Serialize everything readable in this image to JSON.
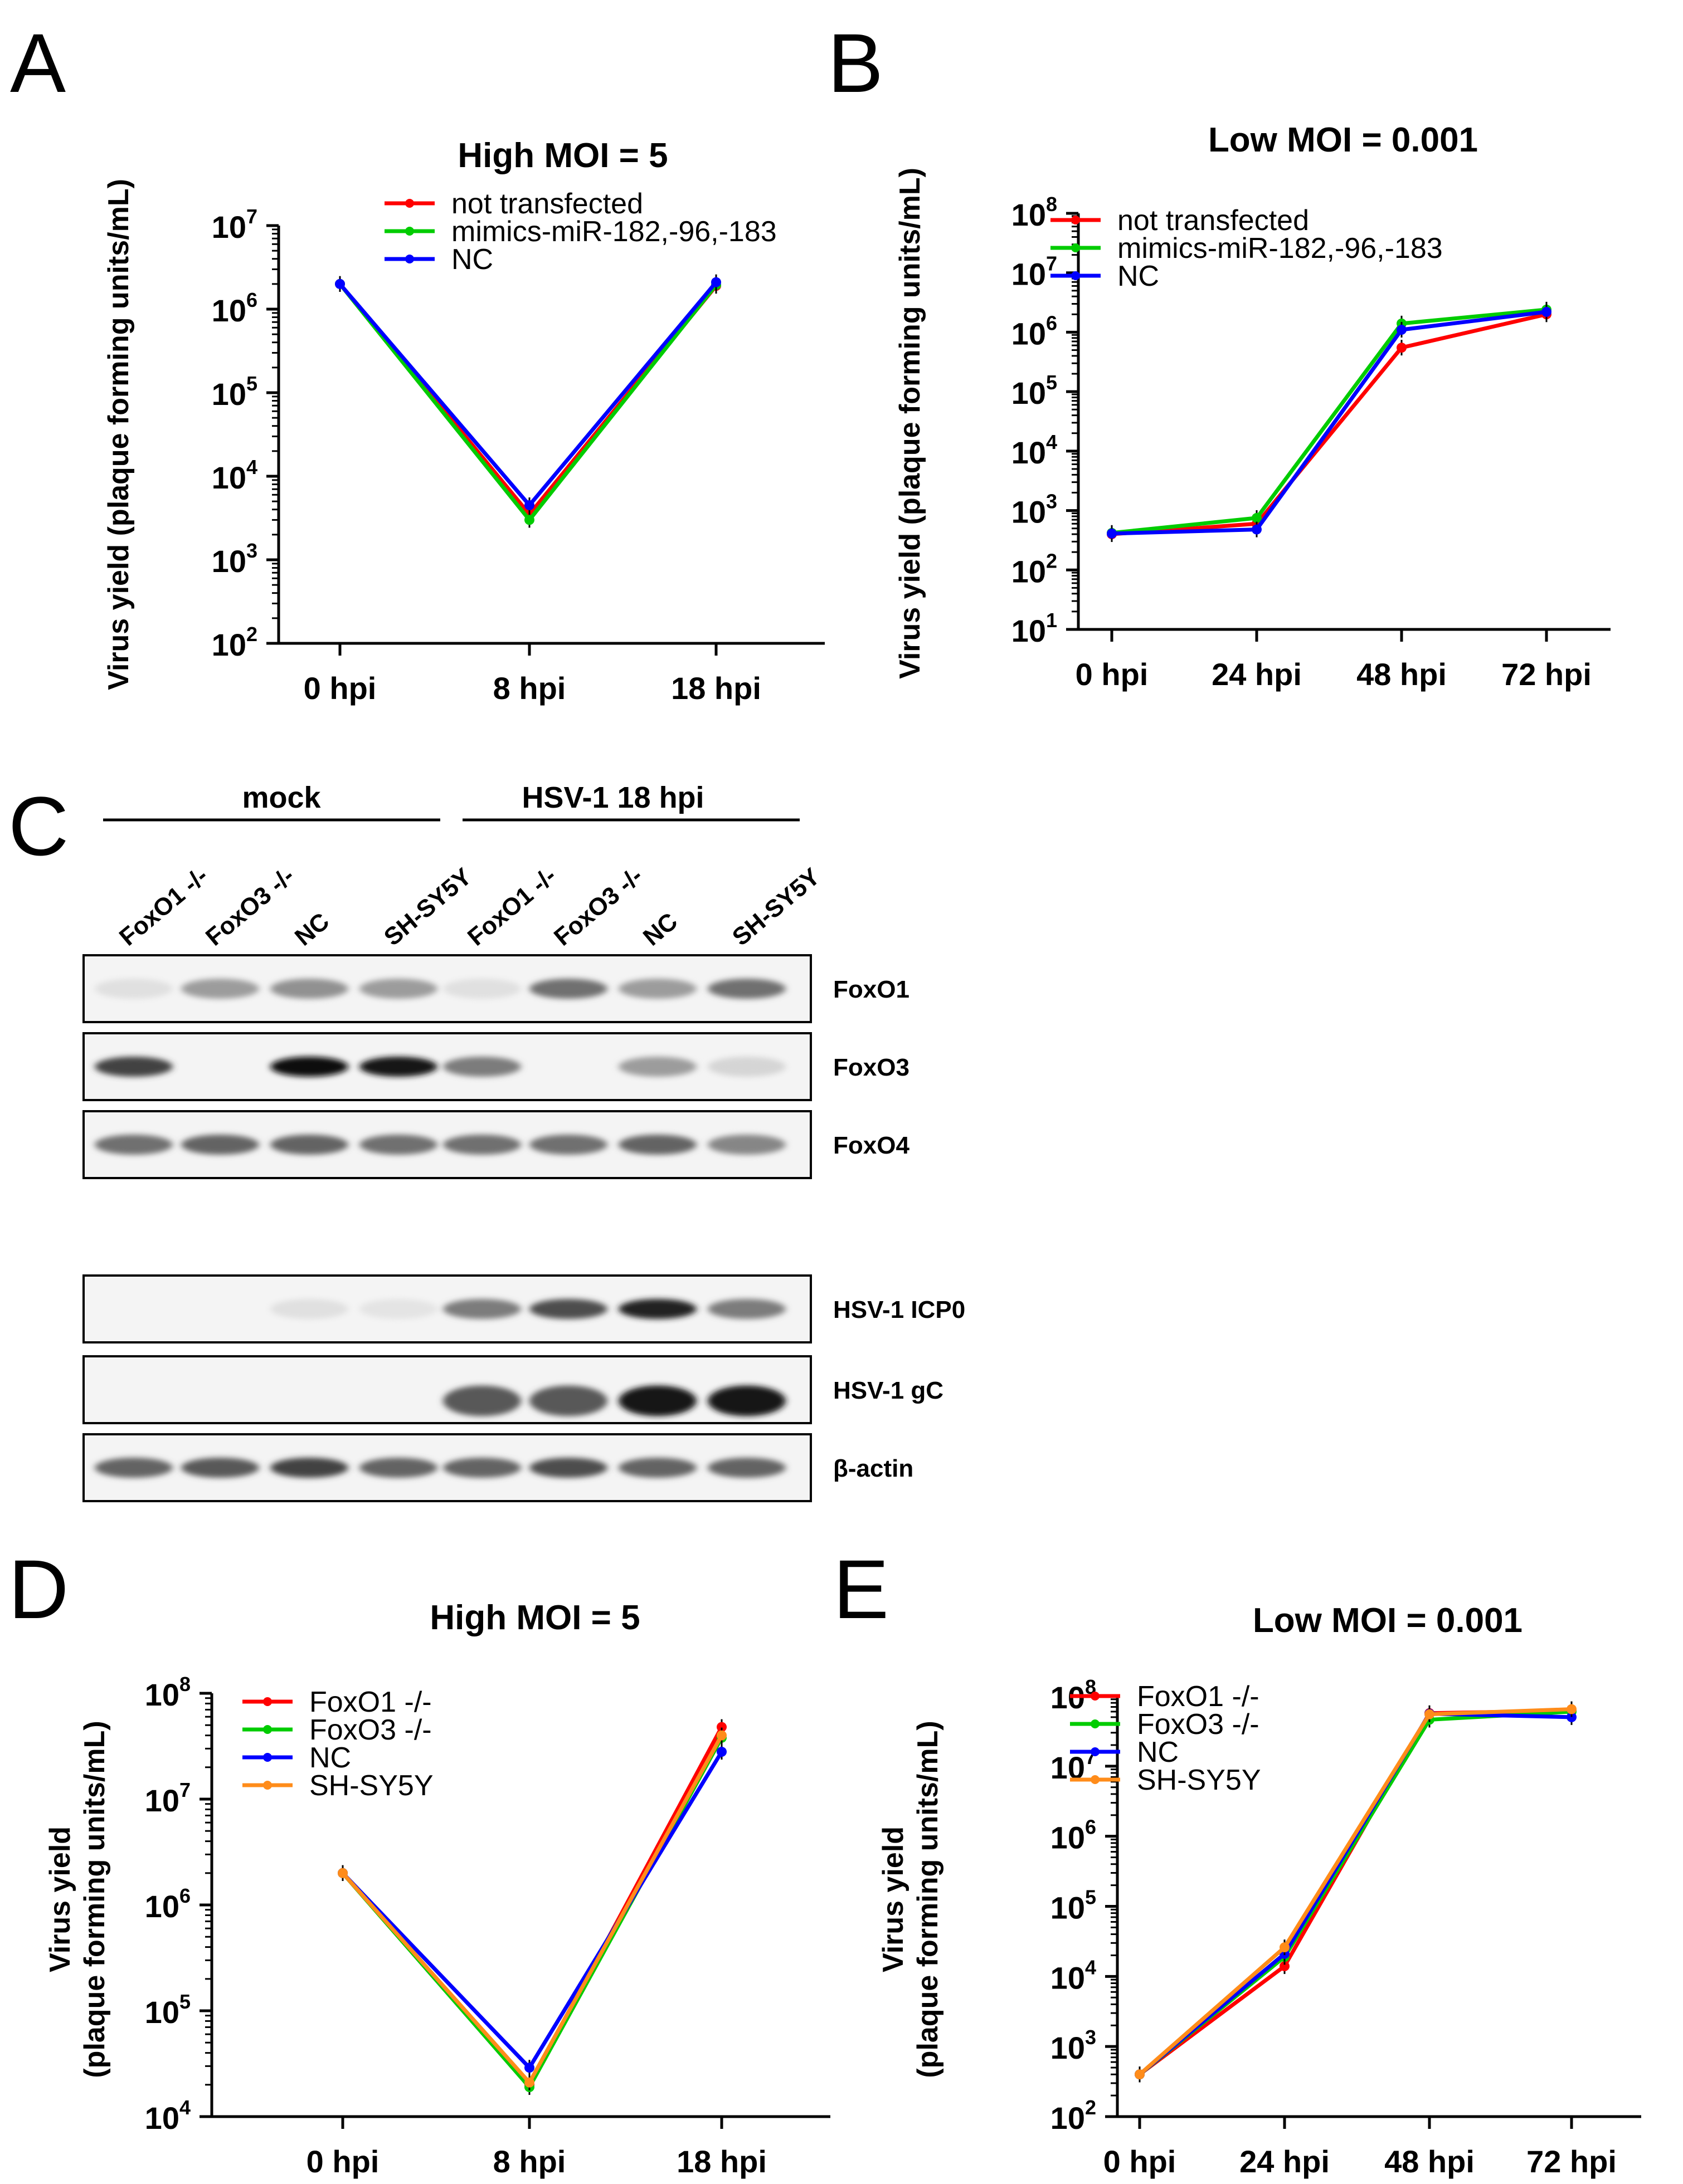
{
  "panels": {
    "A": "A",
    "B": "B",
    "C": "C",
    "D": "D",
    "E": "E"
  },
  "chart_data": [
    {
      "id": "A",
      "type": "line",
      "yscale": "log",
      "title": "High MOI = 5",
      "ylabel": "Virus yield (plaque forming units/mL)",
      "categories": [
        "0 hpi",
        "8 hpi",
        "18 hpi"
      ],
      "ylim_exp": [
        2,
        7
      ],
      "series": [
        {
          "name": "not transfected",
          "color": "#ff0000",
          "values": [
            2000000,
            3500,
            1900000
          ]
        },
        {
          "name": "mimics-miR-182,-96,-183",
          "color": "#00cc00",
          "values": [
            2000000,
            3000,
            1950000
          ]
        },
        {
          "name": "NC",
          "color": "#0000ff",
          "values": [
            2000000,
            4500,
            2100000
          ]
        }
      ]
    },
    {
      "id": "B",
      "type": "line",
      "yscale": "log",
      "title": "Low MOI = 0.001",
      "ylabel": "Virus yield (plaque forming units/mL)",
      "categories": [
        "0 hpi",
        "24 hpi",
        "48 hpi",
        "72 hpi"
      ],
      "ylim_exp": [
        1,
        8
      ],
      "series": [
        {
          "name": "not transfected",
          "color": "#ff0000",
          "values": [
            400,
            600,
            550000,
            2000000
          ]
        },
        {
          "name": "mimics-miR-182,-96,-183",
          "color": "#00cc00",
          "values": [
            420,
            750,
            1400000,
            2400000
          ]
        },
        {
          "name": "NC",
          "color": "#0000ff",
          "values": [
            410,
            480,
            1100000,
            2200000
          ]
        }
      ]
    },
    {
      "id": "D",
      "type": "line",
      "yscale": "log",
      "title": "High MOI = 5",
      "ylabel": [
        "Virus yield",
        "(plaque forming units/mL)"
      ],
      "categories": [
        "0 hpi",
        "8 hpi",
        "18 hpi"
      ],
      "ylim_exp": [
        4,
        8
      ],
      "series": [
        {
          "name": "FoxO1 -/-",
          "color": "#ff0000",
          "values": [
            2000000,
            20000,
            48000000
          ]
        },
        {
          "name": "FoxO3 -/-",
          "color": "#00cc00",
          "values": [
            2000000,
            19000,
            38000000
          ]
        },
        {
          "name": "NC",
          "color": "#0000ff",
          "values": [
            2000000,
            29000,
            28000000
          ]
        },
        {
          "name": "SH-SY5Y",
          "color": "#ff8c1a",
          "values": [
            2000000,
            21000,
            40000000
          ]
        }
      ]
    },
    {
      "id": "E",
      "type": "line",
      "yscale": "log",
      "title": "Low MOI = 0.001",
      "ylabel": [
        "Virus yield",
        "(plaque forming units/mL)"
      ],
      "categories": [
        "0 hpi",
        "24 hpi",
        "48 hpi",
        "72 hpi"
      ],
      "ylim_exp": [
        2,
        8
      ],
      "series": [
        {
          "name": "FoxO1 -/-",
          "color": "#ff0000",
          "values": [
            400,
            14000,
            57000000,
            62000000
          ]
        },
        {
          "name": "FoxO3 -/-",
          "color": "#00cc00",
          "values": [
            400,
            19000,
            46000000,
            60000000
          ]
        },
        {
          "name": "NC",
          "color": "#0000ff",
          "values": [
            400,
            21000,
            56000000,
            50000000
          ]
        },
        {
          "name": "SH-SY5Y",
          "color": "#ff8c1a",
          "values": [
            400,
            26000,
            55000000,
            65000000
          ]
        }
      ]
    }
  ],
  "blot": {
    "groups": [
      "mock",
      "HSV-1 18 hpi"
    ],
    "lanes": [
      "FoxO1 -/-",
      "FoxO3 -/-",
      "NC",
      "SH-SY5Y",
      "FoxO1 -/-",
      "FoxO3 -/-",
      "NC",
      "SH-SY5Y"
    ],
    "rows": [
      {
        "label": "FoxO1",
        "intensity": [
          0.05,
          0.35,
          0.4,
          0.35,
          0.05,
          0.55,
          0.35,
          0.55
        ]
      },
      {
        "label": "FoxO3",
        "intensity": [
          0.75,
          0.0,
          1.0,
          0.95,
          0.5,
          0.0,
          0.35,
          0.1
        ]
      },
      {
        "label": "FoxO4",
        "intensity": [
          0.55,
          0.6,
          0.6,
          0.55,
          0.55,
          0.55,
          0.6,
          0.45
        ]
      },
      {
        "label": "HSV-1 ICP0",
        "intensity": [
          0.0,
          0.0,
          0.05,
          0.03,
          0.5,
          0.7,
          0.9,
          0.5
        ]
      },
      {
        "label": "HSV-1 gC",
        "intensity": [
          0.0,
          0.0,
          0.0,
          0.0,
          0.65,
          0.65,
          0.95,
          0.95
        ]
      },
      {
        "label": "β-actin",
        "intensity": [
          0.6,
          0.65,
          0.75,
          0.6,
          0.6,
          0.7,
          0.6,
          0.6
        ]
      }
    ]
  }
}
